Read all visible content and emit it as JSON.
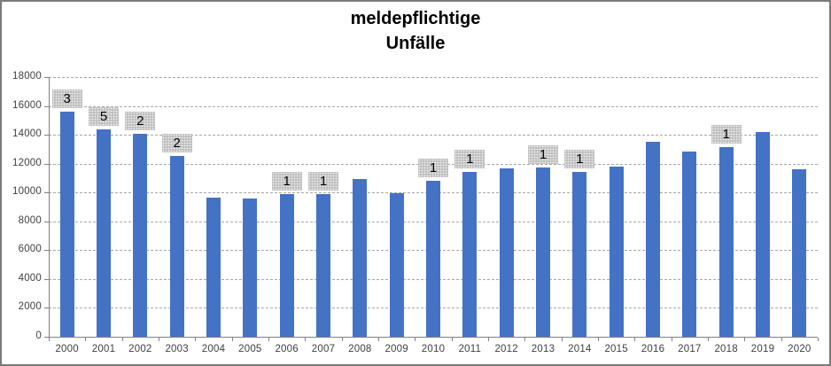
{
  "window": {
    "background": "#ffffff",
    "border_color": "#7a7a7a"
  },
  "chart_data": {
    "type": "bar",
    "title_lines": [
      "meldepflichtige",
      "Unfälle"
    ],
    "title": "meldepflichtige Unfälle",
    "categories": [
      "2000",
      "2001",
      "2002",
      "2003",
      "2004",
      "2005",
      "2006",
      "2007",
      "2008",
      "2009",
      "2010",
      "2011",
      "2012",
      "2013",
      "2014",
      "2015",
      "2016",
      "2017",
      "2018",
      "2019",
      "2020"
    ],
    "values": [
      15600,
      14400,
      14050,
      12550,
      9650,
      9600,
      9900,
      9900,
      10950,
      9950,
      10800,
      11400,
      11650,
      11750,
      11450,
      11800,
      13500,
      12850,
      13150,
      14200,
      11600
    ],
    "data_labels": [
      "3",
      "5",
      "2",
      "2",
      "",
      "",
      "1",
      "1",
      "",
      "",
      "1",
      "1",
      "",
      "1",
      "1",
      "",
      "",
      "",
      "1",
      "",
      ""
    ],
    "xlabel": "",
    "ylabel": "",
    "ylim": [
      0,
      18000
    ],
    "ytick_interval": 2000,
    "ytick_labels": [
      "0",
      "2000",
      "4000",
      "6000",
      "8000",
      "10000",
      "12000",
      "14000",
      "16000",
      "18000"
    ],
    "grid": true,
    "legend": false,
    "bar_color": "#4472C4",
    "data_label_box_color": "#BFBFBF",
    "data_label_text_color": "#000000",
    "axis_color": "#808080",
    "gridline_color": "#A6A6A6",
    "tick_label_color": "#404040",
    "title_color": "#000000"
  }
}
